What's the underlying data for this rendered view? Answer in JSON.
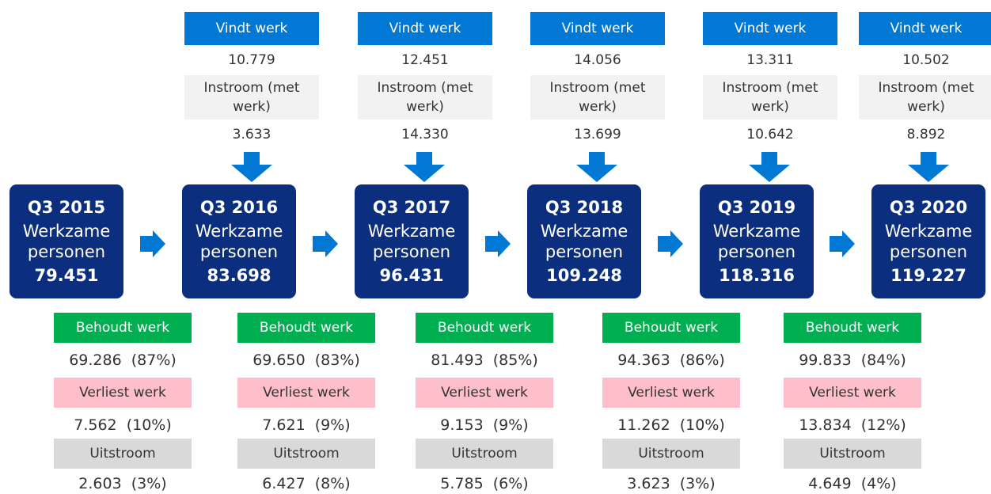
{
  "periods": [
    {
      "label": "Q3 2015",
      "desc": "Werkzame personen",
      "value": "79.451"
    },
    {
      "label": "Q3 2016",
      "desc": "Werkzame personen",
      "value": "83.698"
    },
    {
      "label": "Q3 2017",
      "desc": "Werkzame personen",
      "value": "96.431"
    },
    {
      "label": "Q3 2018",
      "desc": "Werkzame personen",
      "value": "109.248"
    },
    {
      "label": "Q3 2019",
      "desc": "Werkzame personen",
      "value": "118.316"
    },
    {
      "label": "Q3 2020",
      "desc": "Werkzame personen",
      "value": "119.227"
    }
  ],
  "inflows": [
    {
      "vindt_label": "Vindt werk",
      "vindt_value": "10.779",
      "instroom_label": "Instroom (met werk)",
      "instroom_value": "3.633"
    },
    {
      "vindt_label": "Vindt werk",
      "vindt_value": "12.451",
      "instroom_label": "Instroom (met werk)",
      "instroom_value": "14.330"
    },
    {
      "vindt_label": "Vindt werk",
      "vindt_value": "14.056",
      "instroom_label": "Instroom (met werk)",
      "instroom_value": "13.699"
    },
    {
      "vindt_label": "Vindt werk",
      "vindt_value": "13.311",
      "instroom_label": "Instroom (met werk)",
      "instroom_value": "10.642"
    },
    {
      "vindt_label": "Vindt werk",
      "vindt_value": "10.502",
      "instroom_label": "Instroom (met werk)",
      "instroom_value": "8.892"
    }
  ],
  "outflows": [
    {
      "behoudt_label": "Behoudt werk",
      "behoudt_value": "69.286  (87%)",
      "verliest_label": "Verliest werk",
      "verliest_value": "7.562  (10%)",
      "uitstroom_label": "Uitstroom",
      "uitstroom_value": "2.603  (3%)"
    },
    {
      "behoudt_label": "Behoudt werk",
      "behoudt_value": "69.650  (83%)",
      "verliest_label": "Verliest werk",
      "verliest_value": "7.621  (9%)",
      "uitstroom_label": "Uitstroom",
      "uitstroom_value": "6.427  (8%)"
    },
    {
      "behoudt_label": "Behoudt werk",
      "behoudt_value": "81.493  (85%)",
      "verliest_label": "Verliest werk",
      "verliest_value": "9.153  (9%)",
      "uitstroom_label": "Uitstroom",
      "uitstroom_value": "5.785  (6%)"
    },
    {
      "behoudt_label": "Behoudt werk",
      "behoudt_value": "94.363  (86%)",
      "verliest_label": "Verliest werk",
      "verliest_value": "11.262  (10%)",
      "uitstroom_label": "Uitstroom",
      "uitstroom_value": "3.623  (3%)"
    },
    {
      "behoudt_label": "Behoudt werk",
      "behoudt_value": "99.833  (84%)",
      "verliest_label": "Verliest werk",
      "verliest_value": "13.834  (12%)",
      "uitstroom_label": "Uitstroom",
      "uitstroom_value": "4.649  (4%)"
    }
  ]
}
